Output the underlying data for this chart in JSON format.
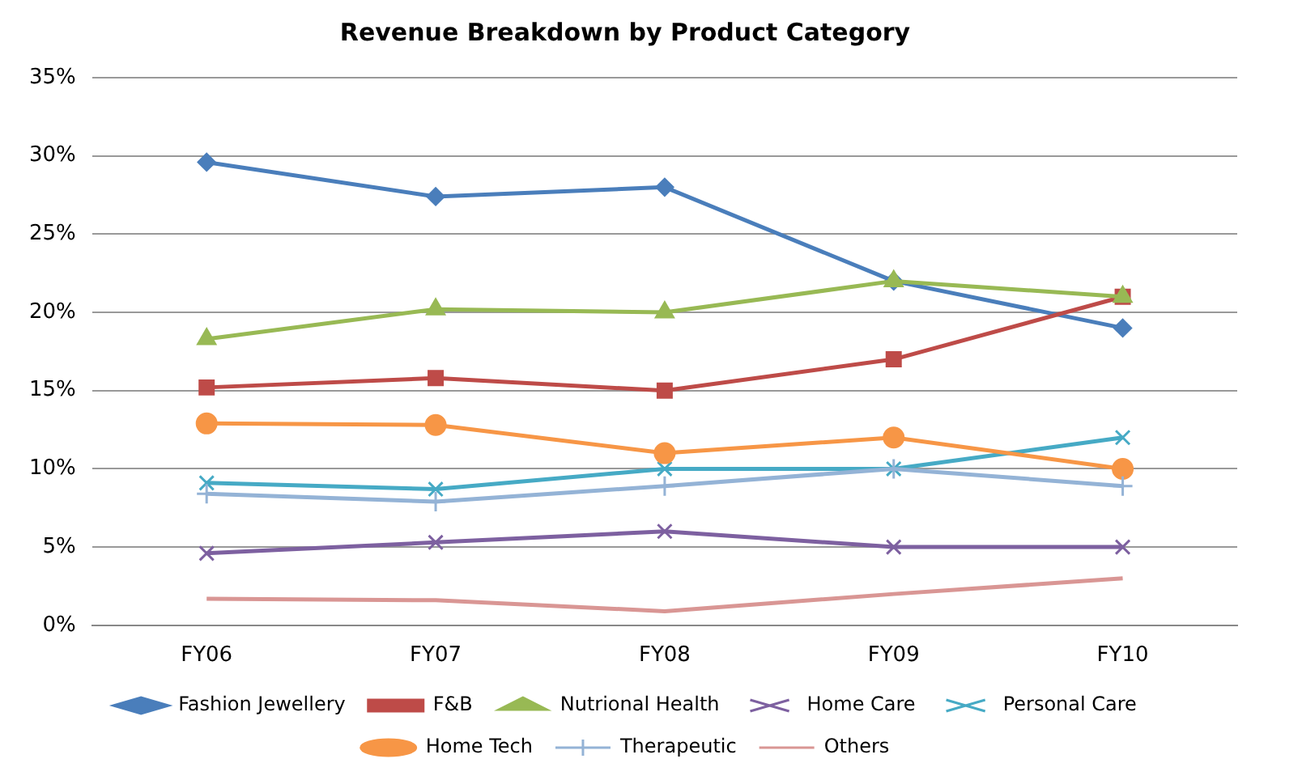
{
  "chart_data": {
    "type": "line",
    "title": "Revenue Breakdown by Product Category",
    "categories": [
      "FY06",
      "FY07",
      "FY08",
      "FY09",
      "FY10"
    ],
    "series": [
      {
        "name": "Fashion Jewellery",
        "color": "#4a7ebb",
        "marker": "diamond",
        "values": [
          29.6,
          27.4,
          28,
          22,
          19
        ]
      },
      {
        "name": "F&B",
        "color": "#be4b48",
        "marker": "square",
        "values": [
          15.2,
          15.8,
          15,
          17,
          21
        ]
      },
      {
        "name": "Nutrional Health",
        "color": "#98b954",
        "marker": "triangle",
        "values": [
          18.3,
          20.2,
          20,
          22,
          21
        ]
      },
      {
        "name": "Home Care",
        "color": "#7d60a0",
        "marker": "cross",
        "values": [
          4.6,
          5.3,
          6,
          5,
          5
        ]
      },
      {
        "name": "Personal Care",
        "color": "#46aac5",
        "marker": "cross",
        "values": [
          9.1,
          8.7,
          10,
          10,
          12
        ]
      },
      {
        "name": "Home Tech",
        "color": "#f79646",
        "marker": "circle",
        "values": [
          12.9,
          12.8,
          11,
          12,
          10
        ]
      },
      {
        "name": "Therapeutic",
        "color": "#94b3d6",
        "marker": "plus",
        "values": [
          8.4,
          7.9,
          8.9,
          10,
          8.9
        ]
      },
      {
        "name": "Others",
        "color": "#d99694",
        "marker": "none",
        "values": [
          1.7,
          1.6,
          0.9,
          2,
          3
        ]
      }
    ],
    "ylim": [
      0,
      35
    ],
    "yticks": [
      {
        "value": 0,
        "label": "0%"
      },
      {
        "value": 5,
        "label": "5%"
      },
      {
        "value": 10,
        "label": "10%"
      },
      {
        "value": 15,
        "label": "15%"
      },
      {
        "value": 20,
        "label": "20%"
      },
      {
        "value": 25,
        "label": "25%"
      },
      {
        "value": 30,
        "label": "30%"
      },
      {
        "value": 35,
        "label": "35%"
      }
    ],
    "grid": "y",
    "legend": "bottom",
    "line_style": "solid"
  }
}
